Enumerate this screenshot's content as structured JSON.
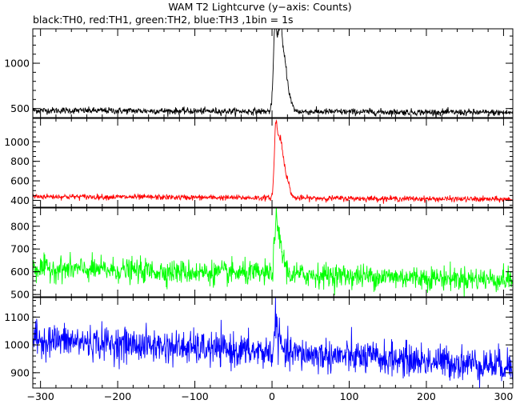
{
  "title": "WAM T2 Lightcurve (y−axis: Counts)",
  "subtitle": "black:TH0, red:TH1, green:TH2, blue:TH3 ,1bin = 1s",
  "chart_data": {
    "type": "line",
    "x_range": [
      -310,
      312
    ],
    "x_ticks": [
      -300,
      -200,
      -100,
      0,
      100,
      200,
      300
    ],
    "x_tick_labels": [
      "−300",
      "−200",
      "−100",
      "0",
      "100",
      "200",
      "300"
    ],
    "bin_seconds": 1,
    "panels": [
      {
        "name": "TH0",
        "color": "#000000",
        "ylim": [
          400,
          1380
        ],
        "y_ticks": [
          500,
          1000
        ],
        "y_tick_labels": [
          "500",
          "1000"
        ],
        "y_minor_step": 100,
        "baseline": 480,
        "noise": 18,
        "trend_end": -25,
        "peaks": [
          {
            "x": 4,
            "amp": 900,
            "width": 2.2
          },
          {
            "x": 10,
            "amp": 850,
            "width": 2.8
          },
          {
            "x": 16,
            "amp": 480,
            "width": 3.5
          },
          {
            "x": 22,
            "amp": 120,
            "width": 4
          }
        ]
      },
      {
        "name": "TH1",
        "color": "#ff0000",
        "ylim": [
          330,
          1240
        ],
        "y_ticks": [
          400,
          600,
          800,
          1000
        ],
        "y_tick_labels": [
          "400",
          "600",
          "800",
          "1000"
        ],
        "y_minor_step": 50,
        "baseline": 440,
        "noise": 14,
        "trend_end": -30,
        "peaks": [
          {
            "x": 5,
            "amp": 720,
            "width": 2
          },
          {
            "x": 10,
            "amp": 520,
            "width": 2.5
          },
          {
            "x": 15,
            "amp": 320,
            "width": 3
          },
          {
            "x": 21,
            "amp": 120,
            "width": 3
          }
        ]
      },
      {
        "name": "TH2",
        "color": "#00ff00",
        "ylim": [
          490,
          880
        ],
        "y_ticks": [
          500,
          600,
          700,
          800
        ],
        "y_tick_labels": [
          "500",
          "600",
          "700",
          "800"
        ],
        "y_minor_step": 20,
        "baseline": 615,
        "noise": 26,
        "trend_end": -50,
        "peaks": [
          {
            "x": 5,
            "amp": 230,
            "width": 2
          },
          {
            "x": 10,
            "amp": 140,
            "width": 2
          },
          {
            "x": 15,
            "amp": 60,
            "width": 3
          }
        ]
      },
      {
        "name": "TH3",
        "color": "#0000ff",
        "ylim": [
          845,
          1170
        ],
        "y_ticks": [
          900,
          1000,
          1100
        ],
        "y_tick_labels": [
          "900",
          "1000",
          "1100"
        ],
        "y_minor_step": 20,
        "baseline": 1020,
        "noise": 30,
        "trend_end": -95,
        "peaks": [
          {
            "x": 5,
            "amp": 130,
            "width": 1.5
          },
          {
            "x": 10,
            "amp": 50,
            "width": 2
          }
        ]
      }
    ]
  }
}
